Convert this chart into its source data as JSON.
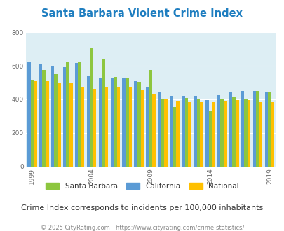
{
  "title": "Santa Barbara Violent Crime Index",
  "subtitle": "Crime Index corresponds to incidents per 100,000 inhabitants",
  "footer": "© 2025 CityRating.com - https://www.cityrating.com/crime-statistics/",
  "years": [
    1999,
    2000,
    2001,
    2002,
    2003,
    2004,
    2005,
    2006,
    2007,
    2008,
    2009,
    2010,
    2011,
    2012,
    2013,
    2014,
    2015,
    2016,
    2017,
    2018,
    2019
  ],
  "california": [
    623,
    610,
    595,
    590,
    618,
    536,
    526,
    525,
    525,
    510,
    474,
    445,
    420,
    422,
    420,
    397,
    425,
    445,
    450,
    451,
    443
  ],
  "santa_barbara": [
    515,
    575,
    548,
    620,
    622,
    703,
    643,
    533,
    530,
    505,
    575,
    400,
    355,
    410,
    400,
    330,
    405,
    415,
    403,
    450,
    440
  ],
  "national": [
    507,
    507,
    500,
    494,
    475,
    463,
    469,
    474,
    471,
    455,
    430,
    404,
    390,
    387,
    383,
    382,
    393,
    397,
    395,
    385,
    381
  ],
  "bar_colors": {
    "santa_barbara": "#8dc63f",
    "california": "#5b9bd5",
    "national": "#ffc000"
  },
  "ylim": [
    0,
    800
  ],
  "yticks": [
    0,
    200,
    400,
    600,
    800
  ],
  "xticks": [
    1999,
    2004,
    2009,
    2014,
    2019
  ],
  "background_color": "#ffffff",
  "plot_bg": "#ddeef4",
  "title_color": "#1f7ec0",
  "subtitle_color": "#333333",
  "footer_color": "#888888",
  "title_fontsize": 10.5,
  "subtitle_fontsize": 8,
  "footer_fontsize": 6,
  "legend_labels": [
    "Santa Barbara",
    "California",
    "National"
  ]
}
